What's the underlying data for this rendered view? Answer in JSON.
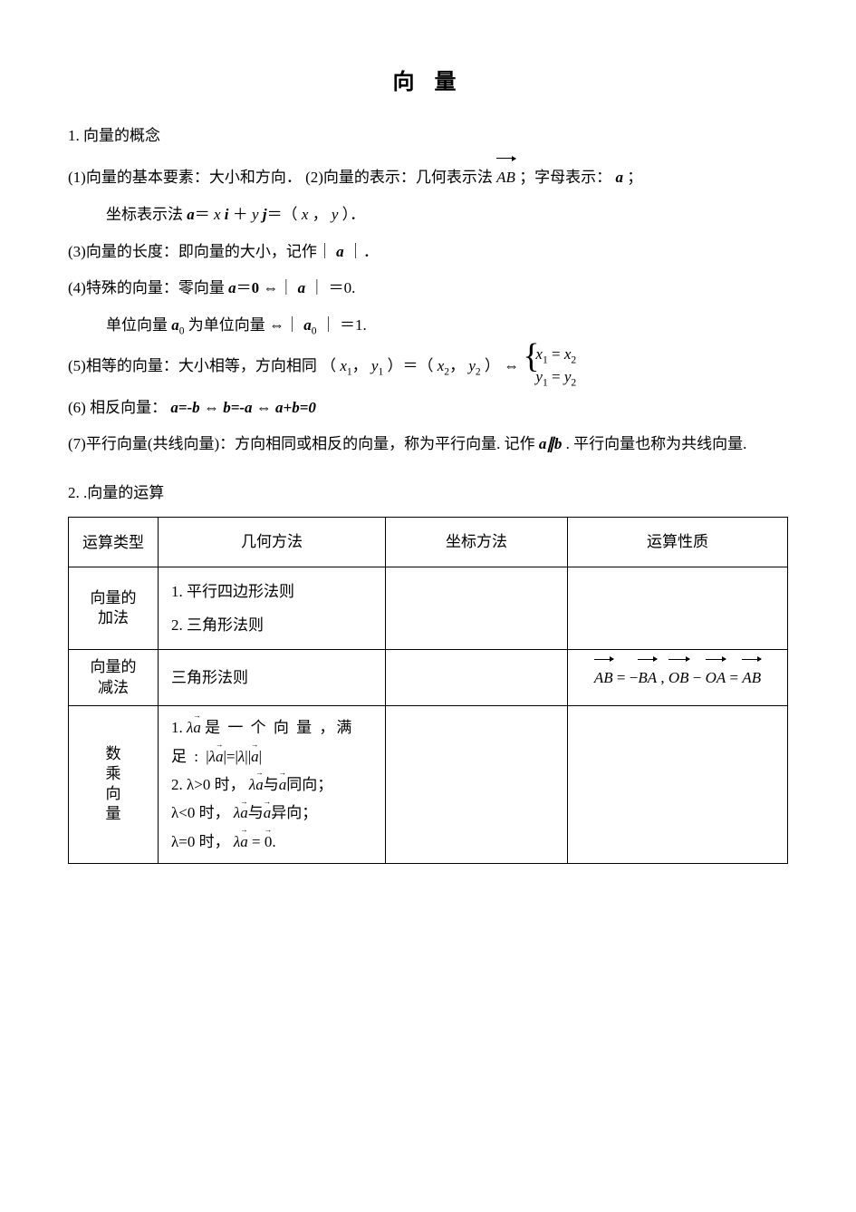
{
  "title": "向 量",
  "sec1": {
    "heading": "1. 向量的概念",
    "p1_a": "(1)向量的基本要素：大小和方向．  (2)向量的表示：几何表示法  ",
    "p1_vecAB": "AB",
    "p1_b": " ；字母表示：",
    "p1_a_bold": "a",
    "p1_c": "；",
    "p2_a": "坐标表示法 ",
    "p2_eq": "a＝ x i ＋ y j＝（ x ，  y ）．",
    "p3": "(3)向量的长度：即向量的大小，记作｜ ",
    "p3_a": "a",
    "p3_end": " ｜．",
    "p4_a": "(4)特殊的向量：零向量 ",
    "p4_eq": "a＝0 ⇔｜ a ｜ ＝0.",
    "p4b_a": "单位向量 ",
    "p4b_mid": "为单位向量 ⇔｜ ",
    "p4b_end": " ｜ ＝1.",
    "p5_a": "(5)相等的向量：大小相等，方向相同    （",
    "p5_mid": "）＝（ ",
    "p5_eq": "） ⇔ ",
    "sys_r1_l": "x",
    "sys_r1_r": "x",
    "sys_r2_l": "y",
    "sys_r2_r": "y",
    "p6_a": "(6)  相反向量：",
    "p6_eq": "a=-b ⇔ b=-a ⇔ a+b=0",
    "p7_a": "(7)平行向量(共线向量)：方向相同或相反的向量，称为平行向量. 记作 ",
    "p7_ab": "a∥b",
    "p7_b": ". 平行向量也称为共线向量."
  },
  "sec2": {
    "heading": "2. .向量的运算",
    "headers": [
      "运算类型",
      "几何方法",
      "坐标方法",
      "运算性质"
    ],
    "row1": {
      "type_l1": "向量的",
      "type_l2": "加法",
      "geom_l1": "1. 平行四边形法则",
      "geom_l2": "2. 三角形法则"
    },
    "row2": {
      "type_l1": "向量的",
      "type_l2": "减法",
      "geom": "三角形法则",
      "prop_AB": "AB",
      "prop_BA": "BA",
      "prop_OB": "OB",
      "prop_OA": "OA",
      "prop_AB2": "AB"
    },
    "row3": {
      "type_l1": "数",
      "type_l2": "乘",
      "type_l3": "向",
      "type_l4": "量",
      "g1a": "1. ",
      "g1b": " 是 一 个 向 量 ，满 足 : ",
      "g2a": "2. λ>0 时，  ",
      "g2b": "与",
      "g2c": "同向；",
      "g3a": "    λ<0 时，  ",
      "g3b": "与",
      "g3c": "异向；",
      "g4a": "    λ=0 时，  ",
      "g4eq": " = ",
      "g4z": "0",
      "g4d": "."
    }
  }
}
